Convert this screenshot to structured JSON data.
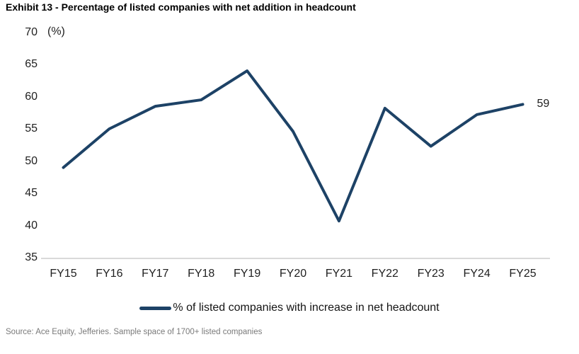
{
  "chart_data": {
    "type": "line",
    "title": "Exhibit 13 - Percentage of listed companies with net addition in headcount",
    "unit_label": "(%)",
    "categories": [
      "FY15",
      "FY16",
      "FY17",
      "FY18",
      "FY19",
      "FY20",
      "FY21",
      "FY22",
      "FY23",
      "FY24",
      "FY25"
    ],
    "series": [
      {
        "name": "% of listed companies with increase in net headcount",
        "values": [
          49,
          55,
          58.5,
          59.5,
          64,
          54.6,
          40.7,
          58.2,
          52.3,
          57.2,
          58.8
        ]
      }
    ],
    "end_point_label": "59",
    "ylim": [
      35,
      70
    ],
    "ytick_step": 5,
    "grid": "off",
    "legend_position": "bottom-center",
    "colors": {
      "line": "#1d4266",
      "axis_line": "#d9d9d9",
      "tick_text": "#1f1f1f",
      "title_text": "#000000",
      "source_text": "#7a7a7a"
    }
  },
  "legend": {
    "label": "% of listed companies with increase in net headcount"
  },
  "source": "Source: Ace Equity, Jefferies. Sample space of 1700+ listed companies"
}
